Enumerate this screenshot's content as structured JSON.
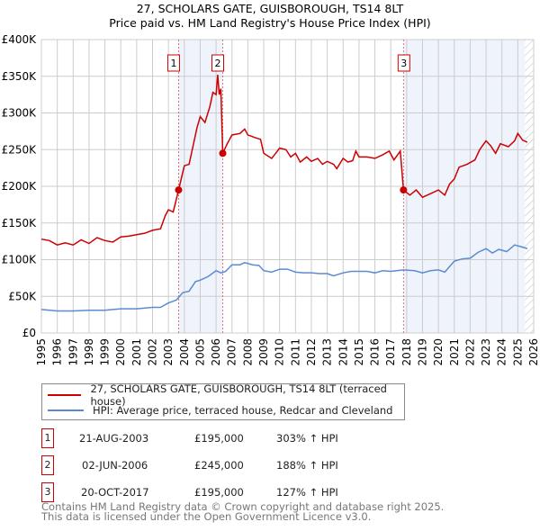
{
  "chart_data": {
    "type": "line",
    "title": "27, SCHOLARS GATE, GUISBOROUGH, TS14 8LT",
    "subtitle": "Price paid vs. HM Land Registry's House Price Index (HPI)",
    "xlim": [
      1995,
      2026
    ],
    "ylim": [
      0,
      400000
    ],
    "x_ticks": [
      "1995",
      "1996",
      "1997",
      "1998",
      "1999",
      "2000",
      "2001",
      "2002",
      "2003",
      "2004",
      "2005",
      "2006",
      "2007",
      "2008",
      "2009",
      "2010",
      "2011",
      "2012",
      "2013",
      "2014",
      "2015",
      "2016",
      "2017",
      "2018",
      "2019",
      "2020",
      "2021",
      "2022",
      "2023",
      "2024",
      "2025",
      "2026"
    ],
    "y_ticks": [
      {
        "v": 0,
        "label": "£0"
      },
      {
        "v": 50000,
        "label": "£50K"
      },
      {
        "v": 100000,
        "label": "£100K"
      },
      {
        "v": 150000,
        "label": "£150K"
      },
      {
        "v": 200000,
        "label": "£200K"
      },
      {
        "v": 250000,
        "label": "£250K"
      },
      {
        "v": 300000,
        "label": "£300K"
      },
      {
        "v": 350000,
        "label": "£350K"
      },
      {
        "v": 400000,
        "label": "£400K"
      }
    ],
    "grid": true,
    "series": [
      {
        "name": "27, SCHOLARS GATE, GUISBOROUGH, TS14 8LT (terraced house)",
        "color": "#cc0000",
        "x": [
          1995,
          1995.5,
          1996,
          1996.5,
          1997,
          1997.5,
          1998,
          1998.5,
          1999,
          1999.5,
          2000,
          2000.5,
          2001,
          2001.5,
          2002,
          2002.5,
          2002.8,
          2003,
          2003.3,
          2003.64,
          2004,
          2004.3,
          2004.6,
          2004.8,
          2005,
          2005.3,
          2005.6,
          2005.8,
          2006,
          2006.1,
          2006.2,
          2006.3,
          2006.42,
          2006.7,
          2007,
          2007.5,
          2007.8,
          2008,
          2008.5,
          2008.8,
          2009,
          2009.5,
          2010,
          2010.4,
          2010.7,
          2011,
          2011.3,
          2011.7,
          2012,
          2012.4,
          2012.7,
          2013,
          2013.4,
          2013.6,
          2014,
          2014.3,
          2014.6,
          2014.8,
          2015,
          2015.5,
          2016,
          2016.5,
          2016.9,
          2017.2,
          2017.6,
          2017.8,
          2018.2,
          2018.6,
          2019,
          2019.5,
          2020,
          2020.4,
          2020.7,
          2021,
          2021.3,
          2021.8,
          2022.3,
          2022.6,
          2023,
          2023.3,
          2023.6,
          2023.9,
          2024.4,
          2024.8,
          2025,
          2025.3,
          2025.6
        ],
        "y": [
          128000,
          126000,
          120000,
          123000,
          120000,
          127000,
          122000,
          130000,
          126000,
          124000,
          131000,
          132000,
          134000,
          136000,
          140000,
          142000,
          160000,
          168000,
          165000,
          195000,
          228000,
          230000,
          260000,
          280000,
          295000,
          287000,
          308000,
          328000,
          325000,
          352000,
          325000,
          333000,
          245000,
          258000,
          270000,
          272000,
          278000,
          270000,
          266000,
          264000,
          245000,
          238000,
          252000,
          250000,
          240000,
          245000,
          233000,
          240000,
          234000,
          238000,
          230000,
          234000,
          230000,
          224000,
          238000,
          233000,
          235000,
          248000,
          240000,
          240000,
          238000,
          243000,
          248000,
          236000,
          248000,
          195000,
          188000,
          195000,
          185000,
          190000,
          195000,
          188000,
          203000,
          210000,
          226000,
          230000,
          236000,
          250000,
          262000,
          255000,
          245000,
          258000,
          254000,
          262000,
          272000,
          263000,
          260000
        ]
      },
      {
        "name": "HPI: Average price, terraced house, Redcar and Cleveland",
        "color": "#5b8bd0",
        "x": [
          1995,
          1996,
          1997,
          1998,
          1999,
          2000,
          2001,
          2002,
          2002.5,
          2003,
          2003.5,
          2003.9,
          2004.3,
          2004.7,
          2005,
          2005.5,
          2006,
          2006.3,
          2006.6,
          2007,
          2007.5,
          2007.8,
          2008.3,
          2008.7,
          2009,
          2009.5,
          2010,
          2010.5,
          2011,
          2011.5,
          2012,
          2012.5,
          2013,
          2013.4,
          2014,
          2014.5,
          2015,
          2015.5,
          2016,
          2016.5,
          2017,
          2017.8,
          2018.5,
          2019,
          2019.5,
          2020,
          2020.4,
          2021,
          2021.5,
          2022,
          2022.5,
          2023,
          2023.4,
          2023.8,
          2024.3,
          2024.8,
          2025.3,
          2025.6
        ],
        "y": [
          32000,
          30000,
          30000,
          31000,
          31000,
          33000,
          33000,
          35000,
          35000,
          41000,
          45000,
          55000,
          57000,
          70000,
          72000,
          77000,
          85000,
          82000,
          84000,
          93000,
          93000,
          96000,
          93000,
          92000,
          85000,
          83000,
          87000,
          87000,
          83000,
          82000,
          82000,
          81000,
          81000,
          78000,
          82000,
          84000,
          84000,
          84000,
          82000,
          85000,
          84000,
          86000,
          85000,
          82000,
          85000,
          86000,
          83000,
          98000,
          101000,
          102000,
          110000,
          115000,
          109000,
          114000,
          111000,
          120000,
          117000,
          115000
        ]
      }
    ],
    "shaded_ranges": [
      [
        2003.64,
        2006.42
      ],
      [
        2017.8,
        2025.45
      ]
    ],
    "hatched_from": 2025.45,
    "sales": [
      {
        "n": "1",
        "x": 2003.64,
        "y": 195000
      },
      {
        "n": "2",
        "x": 2006.42,
        "y": 245000
      },
      {
        "n": "3",
        "x": 2017.8,
        "y": 195000
      }
    ],
    "legend": [
      "27, SCHOLARS GATE, GUISBOROUGH, TS14 8LT (terraced house)",
      "HPI: Average price, terraced house, Redcar and Cleveland"
    ],
    "legend_position": "below"
  },
  "table": [
    {
      "n": "1",
      "date": "21-AUG-2003",
      "price": "£195,000",
      "hpi": "303% ↑ HPI"
    },
    {
      "n": "2",
      "date": "02-JUN-2006",
      "price": "£245,000",
      "hpi": "188% ↑ HPI"
    },
    {
      "n": "3",
      "date": "20-OCT-2017",
      "price": "£195,000",
      "hpi": "127% ↑ HPI"
    }
  ],
  "footer": [
    "Contains HM Land Registry data © Crown copyright and database right 2025.",
    "This data is licensed under the Open Government Licence v3.0."
  ]
}
